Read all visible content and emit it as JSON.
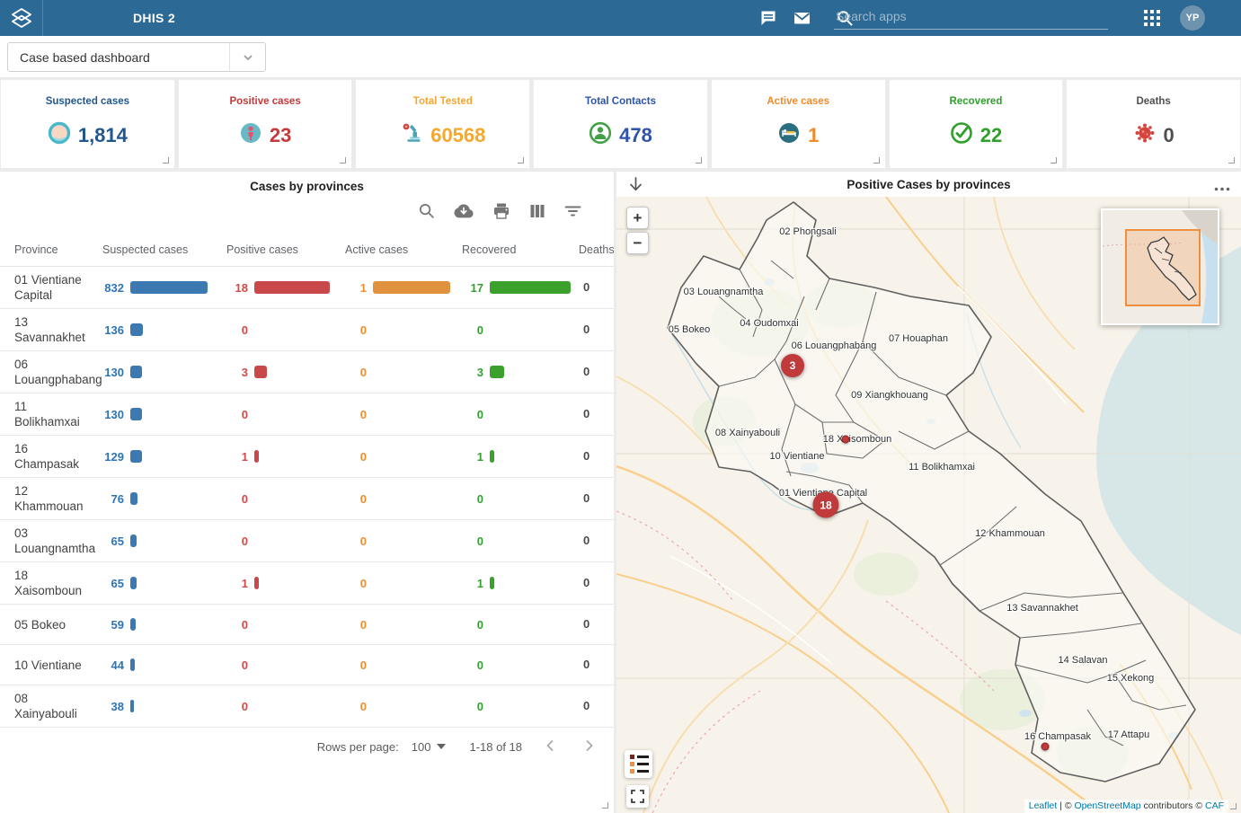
{
  "topbar": {
    "title": "DHIS 2",
    "search_placeholder": "Search apps",
    "avatar_initials": "YP"
  },
  "dashboard_bar": {
    "selected_dashboard": "Case based dashboard"
  },
  "cards": [
    {
      "label": "Suspected cases",
      "value": "1,814",
      "color": "#21578f",
      "icon": "mask-face-icon"
    },
    {
      "label": "Positive cases",
      "value": "23",
      "color": "#c5393c",
      "icon": "positive-person-icon"
    },
    {
      "label": "Total Tested",
      "value": "60568",
      "color": "#f6a72e",
      "icon": "microscope-icon"
    },
    {
      "label": "Total Contacts",
      "value": "478",
      "color": "#2d54a8",
      "icon": "contact-person-icon"
    },
    {
      "label": "Active cases",
      "value": "1",
      "color": "#ef8b2a",
      "icon": "hospital-bed-icon"
    },
    {
      "label": "Recovered",
      "value": "22",
      "color": "#2fa02c",
      "icon": "check-circle-icon"
    },
    {
      "label": "Deaths",
      "value": "0",
      "color": "#4f4f4f",
      "icon": "virus-icon"
    }
  ],
  "table": {
    "title": "Cases by provinces",
    "columns": [
      "Province",
      "Suspected cases",
      "Positive cases",
      "Active cases",
      "Recovered",
      "Deaths"
    ],
    "rows": [
      {
        "province": "01 Vientiane Capital",
        "suspected": 832,
        "positive": 18,
        "active": 1,
        "recovered": 17,
        "deaths": 0
      },
      {
        "province": "13 Savannakhet",
        "suspected": 136,
        "positive": 0,
        "active": 0,
        "recovered": 0,
        "deaths": 0
      },
      {
        "province": "06 Louangphabang",
        "suspected": 130,
        "positive": 3,
        "active": 0,
        "recovered": 3,
        "deaths": 0
      },
      {
        "province": "11 Bolikhamxai",
        "suspected": 130,
        "positive": 0,
        "active": 0,
        "recovered": 0,
        "deaths": 0
      },
      {
        "province": "16 Champasak",
        "suspected": 129,
        "positive": 1,
        "active": 0,
        "recovered": 1,
        "deaths": 0
      },
      {
        "province": "12 Khammouan",
        "suspected": 76,
        "positive": 0,
        "active": 0,
        "recovered": 0,
        "deaths": 0
      },
      {
        "province": "03 Louangnamtha",
        "suspected": 65,
        "positive": 0,
        "active": 0,
        "recovered": 0,
        "deaths": 0
      },
      {
        "province": "18 Xaisomboun",
        "suspected": 65,
        "positive": 1,
        "active": 0,
        "recovered": 1,
        "deaths": 0
      },
      {
        "province": "05 Bokeo",
        "suspected": 59,
        "positive": 0,
        "active": 0,
        "recovered": 0,
        "deaths": 0
      },
      {
        "province": "10 Vientiane",
        "suspected": 44,
        "positive": 0,
        "active": 0,
        "recovered": 0,
        "deaths": 0
      },
      {
        "province": "08 Xainyabouli",
        "suspected": 38,
        "positive": 0,
        "active": 0,
        "recovered": 0,
        "deaths": 0
      }
    ],
    "bar_colors": {
      "suspected": "#3b79b0",
      "positive": "#c9494a",
      "active": "#e0923f",
      "recovered": "#3ba02c"
    },
    "pagination": {
      "rows_per_page_label": "Rows per page:",
      "rows_per_page": "100",
      "range": "1-18 of 18"
    }
  },
  "map": {
    "title": "Positive Cases by provinces",
    "zoom_in": "+",
    "zoom_out": "−",
    "labels": [
      "02 Phongsali",
      "03 Louangnamtha",
      "05 Bokeo",
      "04 Oudomxai",
      "06 Louangphabang",
      "07 Houaphan",
      "09 Xiangkhouang",
      "08 Xainyabouli",
      "18 Xaisomboun",
      "10 Vientiane",
      "11 Bolikhamxai",
      "01 Vientiane Capital",
      "12 Khammouan",
      "13 Savannakhet",
      "14 Salavan",
      "15 Xekong",
      "16 Champasak",
      "17 Attapu"
    ],
    "markers": [
      {
        "label": "3",
        "province": "06 Louangphabang"
      },
      {
        "label": "18",
        "province": "01 Vientiane Capital"
      }
    ],
    "dots": [
      "18 Xaisomboun",
      "16 Champasak"
    ],
    "attribution": {
      "leaflet": "Leaflet",
      "sep": " | © ",
      "osm": "OpenStreetMap",
      "mid": " contributors © ",
      "caf": "CAF"
    }
  }
}
